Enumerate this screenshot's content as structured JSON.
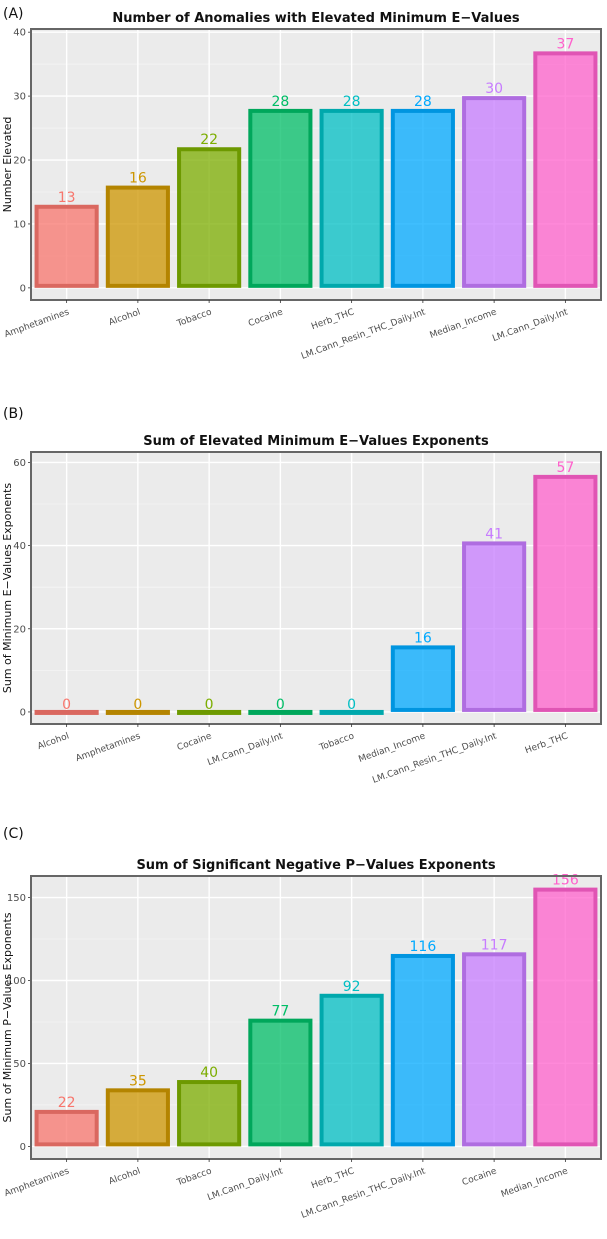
{
  "chart_data": [
    {
      "type": "bar",
      "panel_label": "(A)",
      "title": "Number of Anomalies with Elevated Minimum E−Values",
      "ylabel": "Number Elevated",
      "xlabel": "",
      "categories": [
        "Amphetamines",
        "Alcohol",
        "Tobacco",
        "Cocaine",
        "Herb_THC",
        "LM.Cann_Resin_THC_Daily.Int",
        "Median_Income",
        "LM.Cann_Daily.Int"
      ],
      "values": [
        13,
        16,
        22,
        28,
        28,
        28,
        30,
        37
      ],
      "value_labels": [
        "13",
        "16",
        "22",
        "28",
        "28",
        "28",
        "30",
        "37"
      ],
      "colors": [
        "#F8766D",
        "#CD9600",
        "#7CAE00",
        "#00BE67",
        "#00BFC4",
        "#00A9FF",
        "#C77CFF",
        "#FF61CC"
      ],
      "yticks": [
        0,
        10,
        20,
        30,
        40
      ],
      "ytick_labels": [
        "0",
        "10",
        "20",
        "30",
        "40"
      ],
      "ylim": [
        -1.9,
        40.5
      ],
      "grid": true,
      "legend": "none"
    },
    {
      "type": "bar",
      "panel_label": "(B)",
      "title": "Sum of Elevated Minimum E−Values Exponents",
      "ylabel": "Sum of Minimum E−Values Exponents",
      "xlabel": "",
      "categories": [
        "Alcohol",
        "Amphetamines",
        "Cocaine",
        "LM.Cann_Daily.Int",
        "Tobacco",
        "Median_Income",
        "LM.Cann_Resin_THC_Daily.Int",
        "Herb_THC"
      ],
      "values": [
        0,
        0,
        0,
        0,
        0,
        16,
        41,
        57
      ],
      "value_labels": [
        "0",
        "0",
        "0",
        "0",
        "0",
        "16",
        "41",
        "57"
      ],
      "colors": [
        "#F8766D",
        "#CD9600",
        "#7CAE00",
        "#00BE67",
        "#00BFC4",
        "#00A9FF",
        "#C77CFF",
        "#FF61CC"
      ],
      "yticks": [
        0,
        20,
        40,
        60
      ],
      "ytick_labels": [
        "0",
        "20",
        "40",
        "60"
      ],
      "ylim": [
        -2.9,
        62.5
      ],
      "grid": true,
      "legend": "none"
    },
    {
      "type": "bar",
      "panel_label": "(C)",
      "title": "Sum of Significant Negative P−Values Exponents",
      "ylabel": "Sum of Minimum P−Values Exponents",
      "xlabel": "",
      "categories": [
        "Amphetamines",
        "Alcohol",
        "Tobacco",
        "LM.Cann_Daily.Int",
        "Herb_THC",
        "LM.Cann_Resin_THC_Daily.Int",
        "Cocaine",
        "Median_Income"
      ],
      "values": [
        22,
        35,
        40,
        77,
        92,
        116,
        117,
        156
      ],
      "value_labels": [
        "22",
        "35",
        "40",
        "77",
        "92",
        "116",
        "117",
        "156"
      ],
      "colors": [
        "#F8766D",
        "#CD9600",
        "#7CAE00",
        "#00BE67",
        "#00BFC4",
        "#00A9FF",
        "#C77CFF",
        "#FF61CC"
      ],
      "yticks": [
        0,
        50,
        100,
        150
      ],
      "ytick_labels": [
        "0",
        "50",
        "100",
        "150"
      ],
      "ylim": [
        -7.6,
        163
      ],
      "grid": true,
      "legend": "none"
    }
  ]
}
